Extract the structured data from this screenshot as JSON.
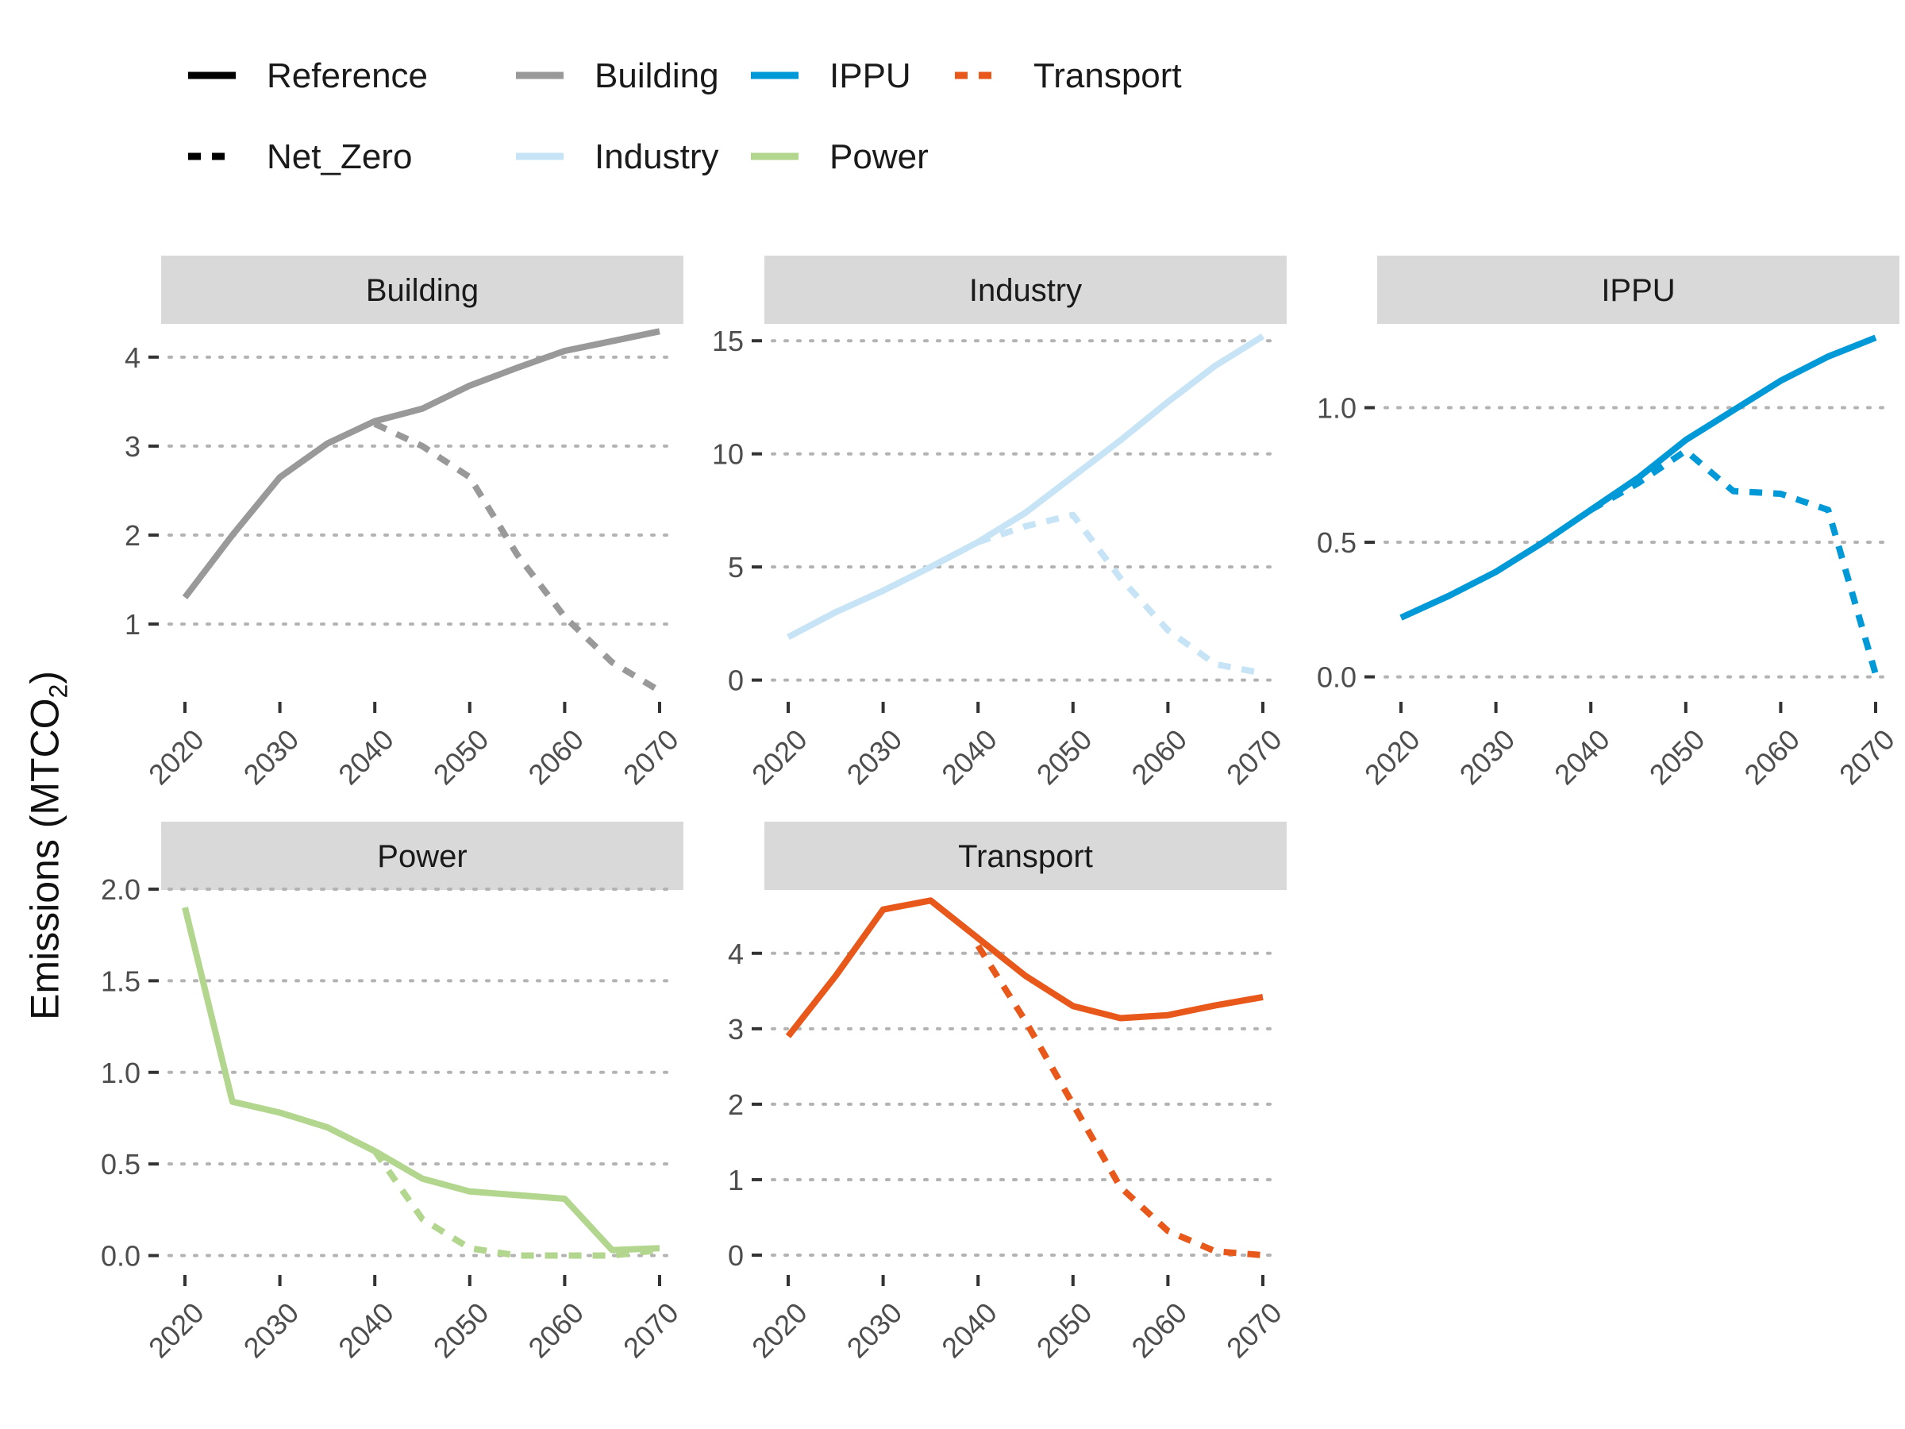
{
  "legend": {
    "linetypes": [
      {
        "label": "Reference",
        "dash": "solid"
      },
      {
        "label": "Net_Zero",
        "dash": "dashed"
      }
    ],
    "sectors": [
      {
        "label": "Building",
        "color": "#999999"
      },
      {
        "label": "Industry",
        "color": "#c6e4f5"
      },
      {
        "label": "IPPU",
        "color": "#0099d8"
      },
      {
        "label": "Power",
        "color": "#b3d68e"
      },
      {
        "label": "Transport",
        "color": "#e8581a"
      }
    ]
  },
  "ylabel": {
    "text": "Emissions (MTCO",
    "sub": "2",
    "close": ")"
  },
  "chart_data": [
    {
      "type": "line",
      "title": "Building",
      "color": "#999999",
      "x_ticks": [
        "2020",
        "2030",
        "2040",
        "2050",
        "2060",
        "2070"
      ],
      "xlim": [
        2020,
        2070
      ],
      "y_ticks": [
        "1",
        "2",
        "3",
        "4"
      ],
      "ylim": [
        0.18,
        4.4
      ],
      "series": [
        {
          "name": "Reference",
          "x": [
            2020,
            2025,
            2030,
            2035,
            2040,
            2045,
            2050,
            2055,
            2060,
            2065,
            2070
          ],
          "y": [
            1.3,
            2.0,
            2.65,
            3.03,
            3.28,
            3.42,
            3.68,
            3.88,
            4.07,
            4.18,
            4.29
          ]
        },
        {
          "name": "Net_Zero",
          "x": [
            2040,
            2045,
            2050,
            2055,
            2060,
            2065,
            2070
          ],
          "y": [
            3.25,
            3.0,
            2.65,
            1.78,
            1.08,
            0.57,
            0.25
          ]
        }
      ]
    },
    {
      "type": "line",
      "title": "Industry",
      "color": "#c6e4f5",
      "x_ticks": [
        "2020",
        "2030",
        "2040",
        "2050",
        "2060",
        "2070"
      ],
      "xlim": [
        2020,
        2070
      ],
      "y_ticks": [
        "0",
        "5",
        "10",
        "15"
      ],
      "ylim": [
        -0.75,
        15.85
      ],
      "series": [
        {
          "name": "Reference",
          "x": [
            2020,
            2025,
            2030,
            2035,
            2040,
            2045,
            2050,
            2055,
            2060,
            2065,
            2070
          ],
          "y": [
            1.9,
            3.0,
            3.95,
            5.0,
            6.1,
            7.4,
            9.0,
            10.6,
            12.3,
            13.9,
            15.2
          ]
        },
        {
          "name": "Net_Zero",
          "x": [
            2040,
            2045,
            2050,
            2055,
            2060,
            2065,
            2070
          ],
          "y": [
            6.1,
            6.8,
            7.3,
            4.5,
            2.2,
            0.7,
            0.3
          ]
        }
      ]
    },
    {
      "type": "line",
      "title": "IPPU",
      "color": "#0099d8",
      "x_ticks": [
        "2020",
        "2030",
        "2040",
        "2050",
        "2060",
        "2070"
      ],
      "xlim": [
        2020,
        2070
      ],
      "y_ticks": [
        "0.0",
        "0.5",
        "1.0"
      ],
      "ylim": [
        -0.075,
        1.32
      ],
      "series": [
        {
          "name": "Reference",
          "x": [
            2020,
            2025,
            2030,
            2035,
            2040,
            2045,
            2050,
            2055,
            2060,
            2065,
            2070
          ],
          "y": [
            0.22,
            0.3,
            0.39,
            0.5,
            0.62,
            0.74,
            0.88,
            0.99,
            1.1,
            1.19,
            1.26
          ]
        },
        {
          "name": "Net_Zero",
          "x": [
            2040,
            2045,
            2050,
            2055,
            2060,
            2065,
            2070
          ],
          "y": [
            0.62,
            0.72,
            0.84,
            0.69,
            0.68,
            0.62,
            0.01
          ]
        }
      ]
    },
    {
      "type": "line",
      "title": "Power",
      "color": "#b3d68e",
      "x_ticks": [
        "2020",
        "2030",
        "2040",
        "2050",
        "2060",
        "2070"
      ],
      "xlim": [
        2020,
        2070
      ],
      "y_ticks": [
        "0.0",
        "0.5",
        "1.0",
        "1.5",
        "2.0"
      ],
      "ylim": [
        -0.08,
        2.0
      ],
      "series": [
        {
          "name": "Reference",
          "x": [
            2020,
            2025,
            2030,
            2035,
            2040,
            2045,
            2050,
            2055,
            2060,
            2065,
            2070
          ],
          "y": [
            1.9,
            0.84,
            0.78,
            0.7,
            0.57,
            0.42,
            0.35,
            0.33,
            0.31,
            0.03,
            0.04
          ]
        },
        {
          "name": "Net_Zero",
          "x": [
            2040,
            2045,
            2050,
            2055,
            2060,
            2065,
            2070
          ],
          "y": [
            0.57,
            0.2,
            0.04,
            0.0,
            0.0,
            0.0,
            0.03
          ]
        }
      ]
    },
    {
      "type": "line",
      "title": "Transport",
      "color": "#e8581a",
      "x_ticks": [
        "2020",
        "2030",
        "2040",
        "2050",
        "2060",
        "2070"
      ],
      "xlim": [
        2020,
        2070
      ],
      "y_ticks": [
        "0",
        "1",
        "2",
        "3",
        "4"
      ],
      "ylim": [
        -0.2,
        4.85
      ],
      "series": [
        {
          "name": "Reference",
          "x": [
            2020,
            2025,
            2030,
            2035,
            2040,
            2045,
            2050,
            2055,
            2060,
            2065,
            2070
          ],
          "y": [
            2.9,
            3.7,
            4.58,
            4.7,
            4.2,
            3.7,
            3.3,
            3.14,
            3.18,
            3.31,
            3.42
          ]
        },
        {
          "name": "Net_Zero",
          "x": [
            2040,
            2045,
            2050,
            2055,
            2060,
            2065,
            2070
          ],
          "y": [
            4.1,
            3.1,
            2.0,
            0.9,
            0.32,
            0.05,
            0.0
          ]
        }
      ]
    }
  ]
}
